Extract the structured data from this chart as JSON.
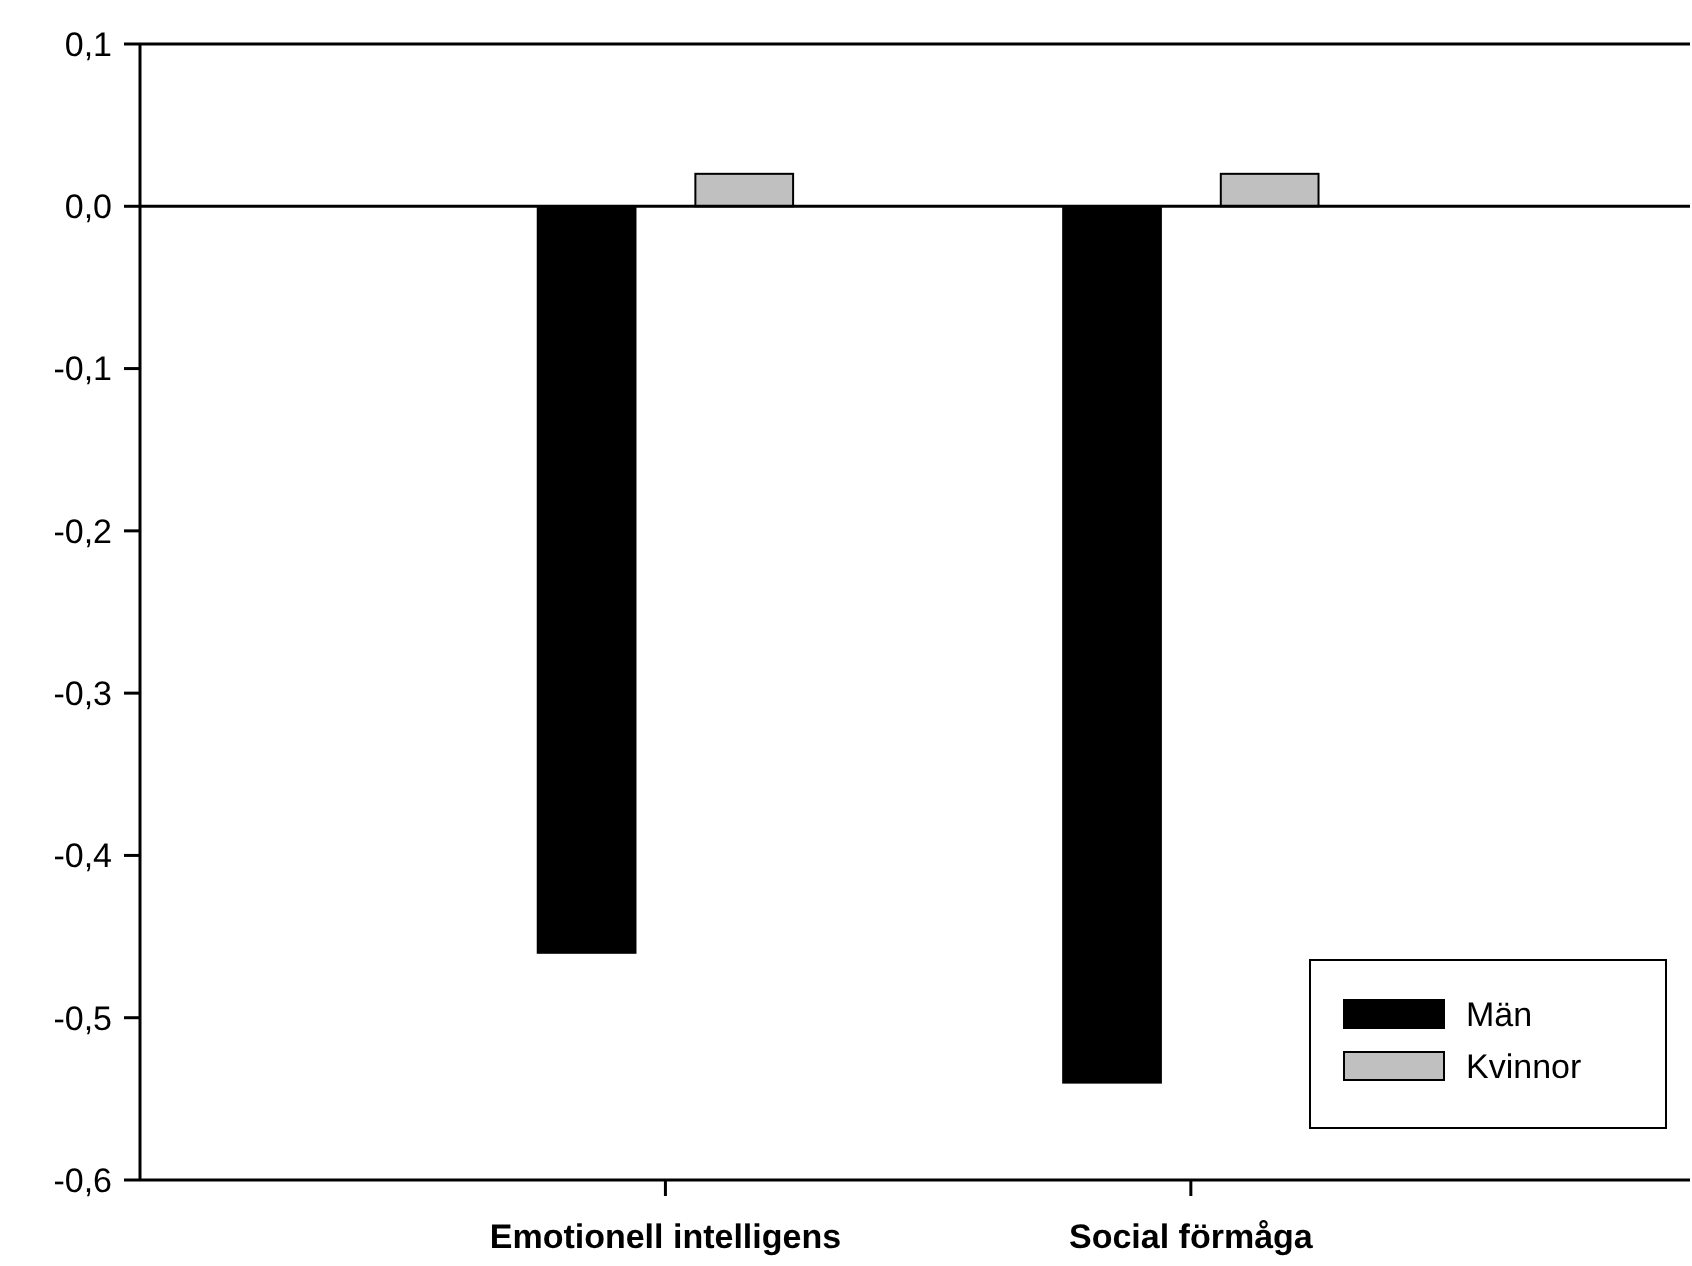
{
  "chart_data": {
    "type": "bar",
    "categories": [
      "Emotionell intelligens",
      "Social förmåga"
    ],
    "series": [
      {
        "name": "Män",
        "color": "#000000",
        "values": [
          -0.46,
          -0.54
        ]
      },
      {
        "name": "Kvinnor",
        "color": "#c0c0c0",
        "values": [
          0.02,
          0.02
        ]
      }
    ],
    "ylim": [
      -0.6,
      0.1
    ],
    "yticks": [
      {
        "value": -0.6,
        "label": "-0,6"
      },
      {
        "value": -0.5,
        "label": "-0,5"
      },
      {
        "value": -0.4,
        "label": "-0,4"
      },
      {
        "value": -0.3,
        "label": "-0,3"
      },
      {
        "value": -0.2,
        "label": "-0,2"
      },
      {
        "value": -0.1,
        "label": "-0,1"
      },
      {
        "value": 0,
        "label": "0,0"
      },
      {
        "value": 0.1,
        "label": "0,1"
      }
    ],
    "ref_lines": [
      {
        "axis": "y",
        "value": 0,
        "color": "#000000"
      }
    ],
    "grid": false,
    "legend": "bottom right"
  }
}
